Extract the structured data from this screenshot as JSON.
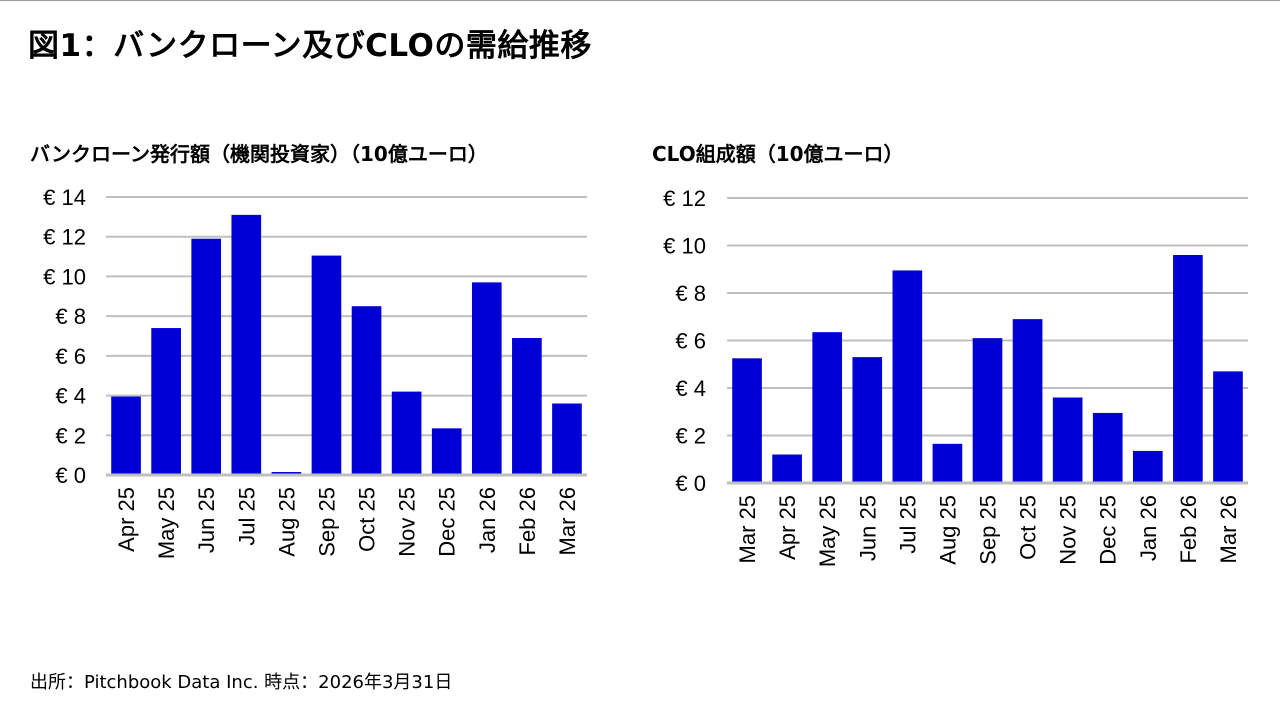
{
  "page": {
    "title": "図1：バンクローン及びCLOの需給推移",
    "footer": "出所：Pitchbook Data Inc. 時点：2026年3月31日"
  },
  "colors": {
    "bar": "#0000d6",
    "grid": "#bfbfbf",
    "axis": "#bfbfbf"
  },
  "chart_data": [
    {
      "type": "bar",
      "title": "バンクローン発行額（機関投資家）（10億ユーロ）",
      "xlabel": "",
      "ylabel": "",
      "tick_prefix": "€ ",
      "categories": [
        "Apr 25",
        "May 25",
        "Jun 25",
        "Jul 25",
        "Aug 25",
        "Sep 25",
        "Oct 25",
        "Nov 25",
        "Dec 25",
        "Jan 26",
        "Feb 26",
        "Mar 26"
      ],
      "values": [
        3.95,
        7.4,
        11.9,
        13.1,
        0.15,
        11.05,
        8.5,
        4.2,
        2.35,
        9.7,
        6.9,
        3.6
      ],
      "ylim": [
        0,
        14
      ],
      "yticks": [
        0,
        2,
        4,
        6,
        8,
        10,
        12,
        14
      ],
      "grid": true,
      "legend": "none"
    },
    {
      "type": "bar",
      "title": "CLO組成額（10億ユーロ）",
      "xlabel": "",
      "ylabel": "",
      "tick_prefix": "€ ",
      "categories": [
        "Mar 25",
        "Apr 25",
        "May 25",
        "Jun 25",
        "Jul 25",
        "Aug 25",
        "Sep 25",
        "Oct 25",
        "Nov 25",
        "Dec 25",
        "Jan 26",
        "Feb 26",
        "Mar 26"
      ],
      "values": [
        5.25,
        1.2,
        6.35,
        5.3,
        8.95,
        1.65,
        6.1,
        6.9,
        3.6,
        2.95,
        1.35,
        9.6,
        4.7
      ],
      "ylim": [
        0,
        12
      ],
      "yticks": [
        0,
        2,
        4,
        6,
        8,
        10,
        12
      ],
      "grid": true,
      "legend": "none"
    }
  ]
}
